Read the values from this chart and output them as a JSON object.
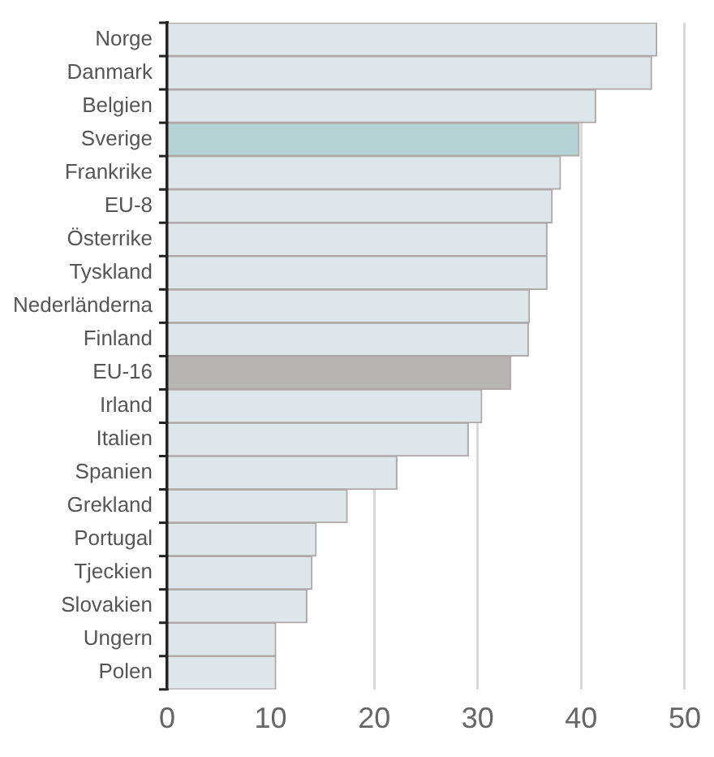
{
  "chart_data": {
    "type": "bar",
    "orientation": "horizontal",
    "categories": [
      "Norge",
      "Danmark",
      "Belgien",
      "Sverige",
      "Frankrike",
      "EU-8",
      "Österrike",
      "Tyskland",
      "Nederländerna",
      "Finland",
      "EU-16",
      "Irland",
      "Italien",
      "Spanien",
      "Grekland",
      "Portugal",
      "Tjeckien",
      "Slovakien",
      "Ungern",
      "Polen"
    ],
    "values": [
      47.3,
      46.8,
      41.4,
      39.8,
      38.0,
      37.2,
      36.7,
      36.7,
      35.0,
      34.9,
      33.2,
      30.4,
      29.1,
      22.2,
      17.4,
      14.4,
      14.0,
      13.5,
      10.5,
      10.5
    ],
    "colors": [
      "#dde6e9",
      "#dde6e9",
      "#dde6e9",
      "#b5d3d5",
      "#dde6e9",
      "#dde6e9",
      "#dde6e9",
      "#dde6e9",
      "#dde6e9",
      "#dde6e9",
      "#b8b4b4",
      "#dde6e9",
      "#dde6e9",
      "#dde6e9",
      "#dde6e9",
      "#dde6e9",
      "#dde6e9",
      "#dde6e9",
      "#dde6e9",
      "#dde6e9"
    ],
    "xlim": [
      0,
      50
    ],
    "xticks": [
      0,
      10,
      20,
      30,
      40,
      50
    ],
    "grid": "x"
  }
}
